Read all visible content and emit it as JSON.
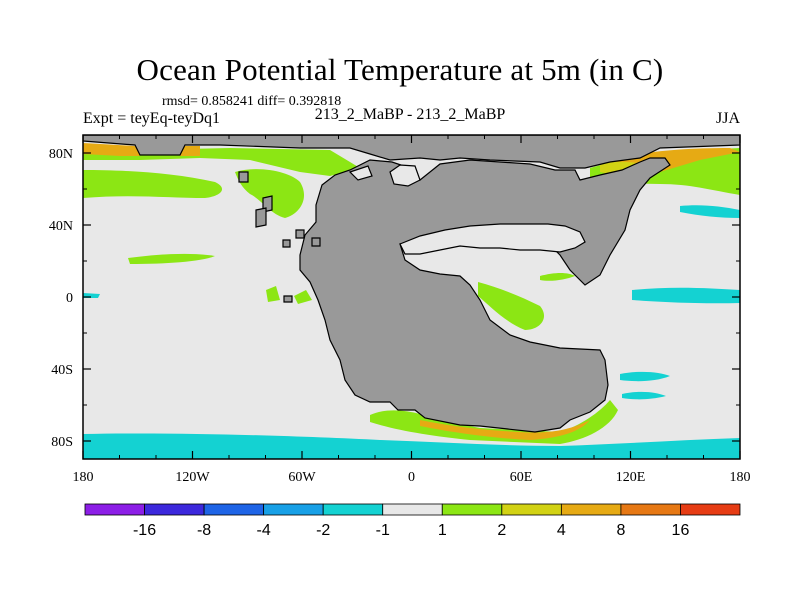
{
  "chart_data": {
    "type": "heatmap",
    "title": "Ocean Potential Temperature at 5m (in C)",
    "stats": {
      "rmsd_label": "rmsd= 0.858241",
      "diff_label": "diff= 0.392818"
    },
    "left_label": "Expt = teyEq-teyDq1",
    "center_label": "213_2_MaBP - 213_2_MaBP",
    "right_label": "JJA",
    "x_axis": {
      "range": [
        -180,
        180
      ],
      "ticks": [
        {
          "value": -180,
          "label": "180"
        },
        {
          "value": -120,
          "label": "120W"
        },
        {
          "value": -60,
          "label": "60W"
        },
        {
          "value": 0,
          "label": "0"
        },
        {
          "value": 60,
          "label": "60E"
        },
        {
          "value": 120,
          "label": "120E"
        },
        {
          "value": 180,
          "label": "180"
        }
      ]
    },
    "y_axis": {
      "range": [
        -90,
        90
      ],
      "ticks": [
        {
          "value": 80,
          "label": "80N"
        },
        {
          "value": 40,
          "label": "40N"
        },
        {
          "value": 0,
          "label": "0"
        },
        {
          "value": -40,
          "label": "40S"
        },
        {
          "value": -80,
          "label": "80S"
        }
      ]
    },
    "colorbar": {
      "colors": [
        "#8c1ee6",
        "#3c28dc",
        "#1e64e6",
        "#18a0e6",
        "#14d2d2",
        "#e8e8e8",
        "#8ce614",
        "#d2d214",
        "#e6aa14",
        "#e67814",
        "#e63c14"
      ],
      "labels": [
        "-16",
        "-8",
        "-4",
        "-2",
        "-1",
        "1",
        "2",
        "4",
        "8",
        "16"
      ]
    },
    "background_value": "near zero (-1 to 1)",
    "land_color": "#999999",
    "notable_regions": [
      {
        "name": "high-latitude northern ocean",
        "range": "1 to 8",
        "color": "#8ce614"
      },
      {
        "name": "southern ocean band near 80S",
        "range": "-2 to -1",
        "color": "#14d2d2"
      },
      {
        "name": "eastern equatorial basin",
        "range": "-2 to -1",
        "color": "#14d2d2"
      },
      {
        "name": "southern continent margin",
        "range": "1 to 8",
        "color": "#e6aa14"
      }
    ]
  }
}
